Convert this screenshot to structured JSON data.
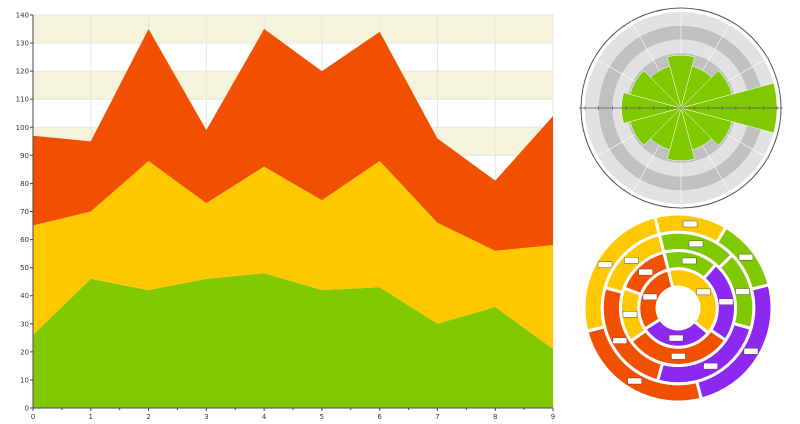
{
  "chart_data": [
    {
      "type": "area",
      "stacked": true,
      "x": [
        0,
        1,
        2,
        3,
        4,
        5,
        6,
        7,
        8,
        9
      ],
      "series": [
        {
          "color": "#80c800",
          "values": [
            26,
            46,
            42,
            46,
            48,
            42,
            43,
            30,
            36,
            21
          ]
        },
        {
          "color": "#ffc800",
          "values": [
            39,
            24,
            46,
            27,
            38,
            32,
            45,
            36,
            20,
            37
          ]
        },
        {
          "color": "#f05000",
          "values": [
            32,
            25,
            47,
            26,
            49,
            46,
            46,
            30,
            25,
            46
          ]
        }
      ],
      "xlim": [
        0,
        9
      ],
      "ylim": [
        0,
        140
      ],
      "x_ticks": [
        "0",
        "1",
        "2",
        "3",
        "4",
        "5",
        "6",
        "7",
        "8",
        "9"
      ],
      "y_ticks": [
        "0",
        "10",
        "20",
        "30",
        "40",
        "50",
        "60",
        "70",
        "80",
        "90",
        "100",
        "110",
        "120",
        "130",
        "140"
      ],
      "grid": true,
      "background_bands": "alternating light beige",
      "band_color": "#f5f3dc"
    },
    {
      "type": "polar-bar",
      "angles_deg": [
        0,
        30,
        60,
        90,
        120,
        150,
        180,
        210,
        240,
        270,
        300,
        330
      ],
      "values": [
        0.55,
        0.45,
        0.55,
        1.0,
        0.55,
        0.45,
        0.55,
        0.45,
        0.55,
        0.62,
        0.55,
        0.45
      ],
      "rlim": [
        0,
        1
      ],
      "bar_color": "#80c800",
      "ring_colors": [
        "#e2e2e2",
        "#c0c0c0"
      ]
    },
    {
      "type": "multi-level-donut",
      "rings": [
        {
          "segments": [
            {
              "color": "#ffc800",
              "value": 2
            },
            {
              "color": "#80c800",
              "value": 2
            },
            {
              "color": "#8c28f0",
              "value": 4
            },
            {
              "color": "#f05000",
              "value": 4
            },
            {
              "color": "#ffc800",
              "value": 4
            }
          ]
        },
        {
          "segments": [
            {
              "color": "#80c800",
              "value": 2
            },
            {
              "color": "#80c800",
              "value": 2
            },
            {
              "color": "#8c28f0",
              "value": 3
            },
            {
              "color": "#f05000",
              "value": 3
            },
            {
              "color": "#ffc800",
              "value": 2
            }
          ]
        },
        {
          "segments": [
            {
              "color": "#80c800",
              "value": 2
            },
            {
              "color": "#8c28f0",
              "value": 3
            },
            {
              "color": "#f05000",
              "value": 4
            },
            {
              "color": "#ffc800",
              "value": 2
            },
            {
              "color": "#f05000",
              "value": 2
            }
          ]
        },
        {
          "segments": [
            {
              "color": "#ffc800",
              "value": 4
            },
            {
              "color": "#8c28f0",
              "value": 3
            },
            {
              "color": "#f05000",
              "value": 3
            }
          ]
        }
      ]
    }
  ]
}
